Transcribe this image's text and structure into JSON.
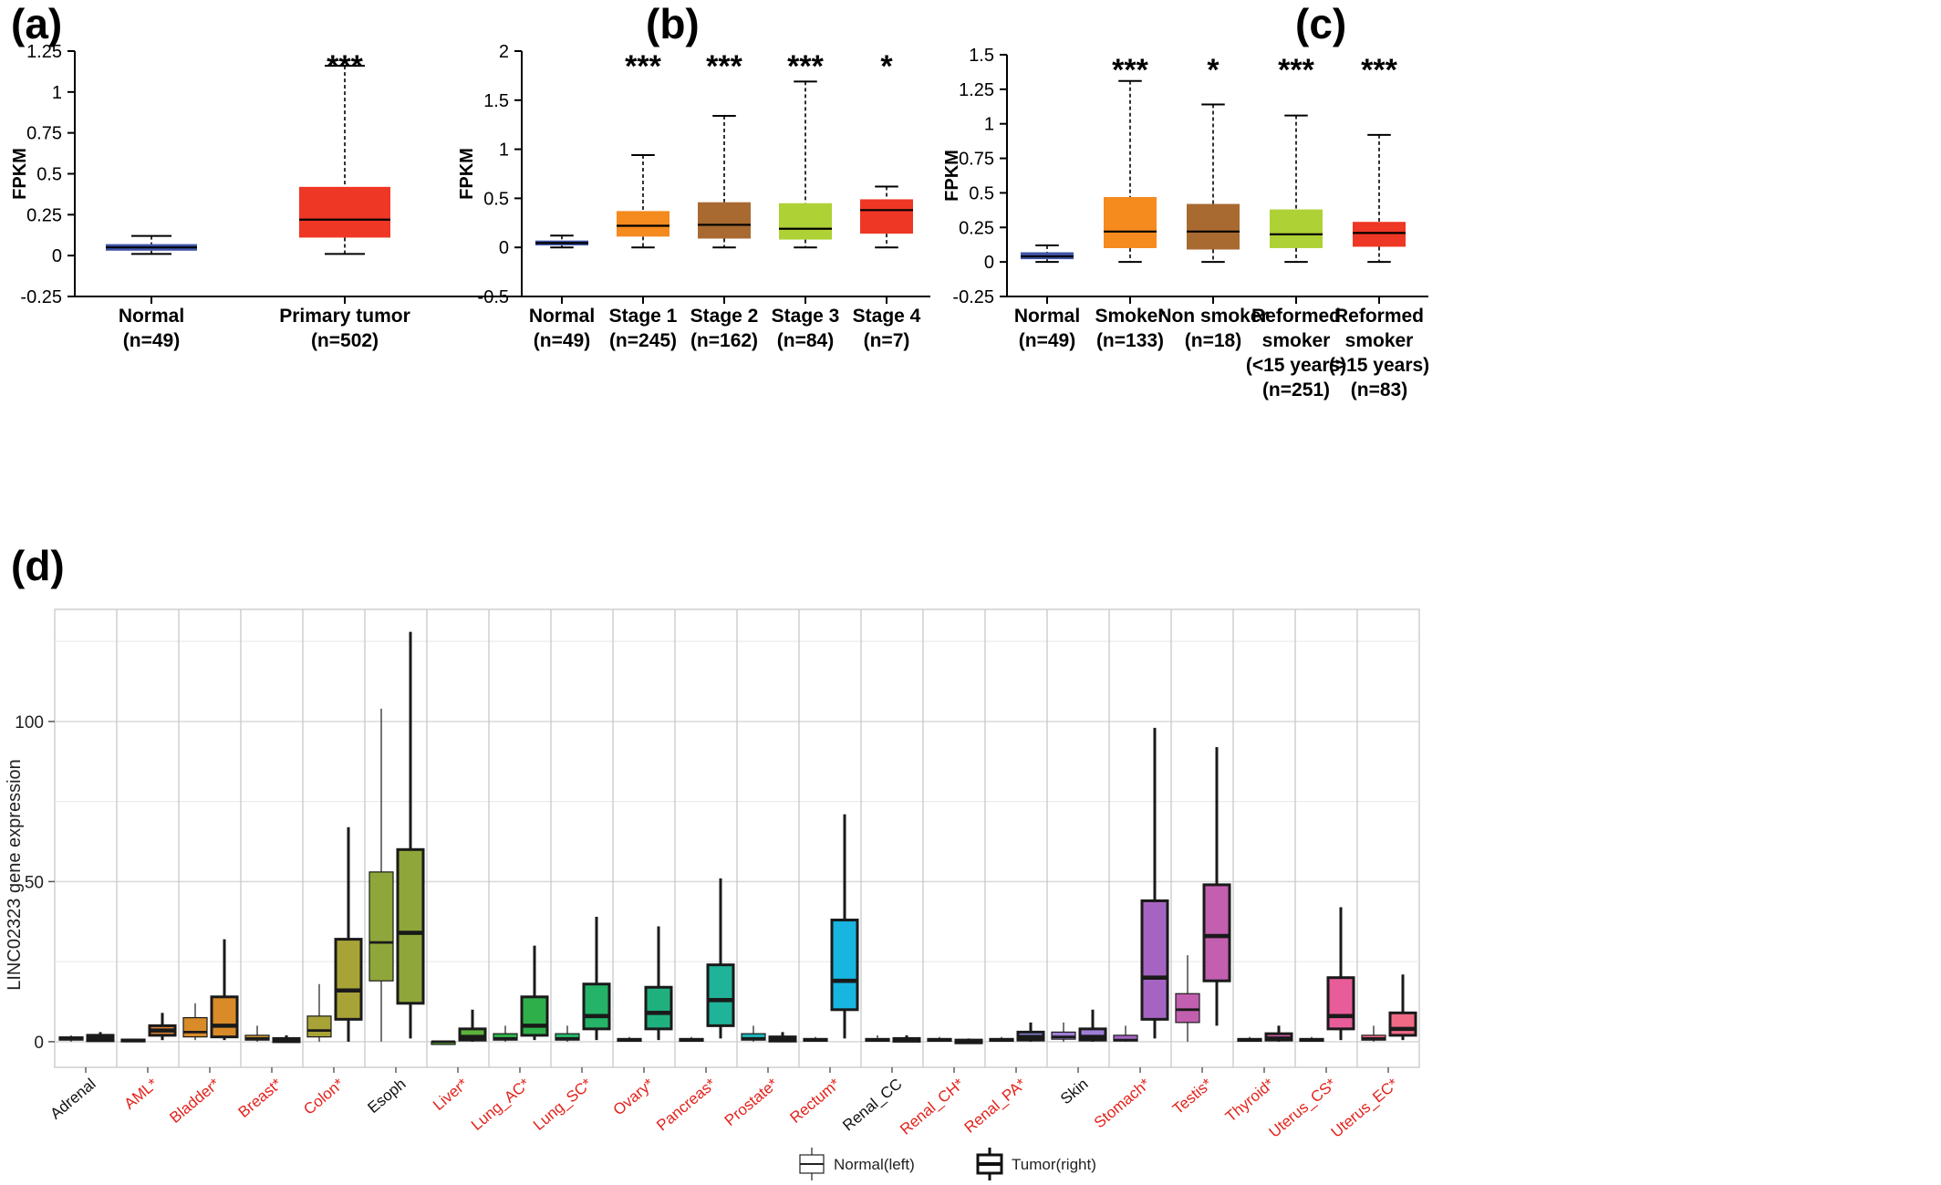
{
  "panel_labels": [
    "(a)",
    "(b)",
    "(c)",
    "(d)"
  ],
  "chart_data": [
    {
      "type": "box",
      "panel": "(a)",
      "ylabel": "FPKM",
      "ylim": [
        -0.25,
        1.25
      ],
      "yticks": [
        -0.25,
        0,
        0.25,
        0.5,
        0.75,
        1,
        1.25
      ],
      "yticklabels": [
        "-0.25",
        "0",
        "0.25",
        "0.5",
        "0.75",
        "1",
        "1.25"
      ],
      "grid": false,
      "categories": [
        [
          "Normal",
          "(n=49)"
        ],
        [
          "Primary tumor",
          "(n=502)"
        ]
      ],
      "boxes": [
        {
          "min": 0.01,
          "q1": 0.03,
          "median": 0.05,
          "q3": 0.07,
          "max": 0.12,
          "color": "#3f54a8"
        },
        {
          "min": 0.01,
          "q1": 0.11,
          "median": 0.22,
          "q3": 0.42,
          "max": 1.16,
          "color": "#ee3724"
        }
      ],
      "significance": [
        "",
        "***"
      ]
    },
    {
      "type": "box",
      "panel": "(b)",
      "ylabel": "FPKM",
      "ylim": [
        -0.5,
        2
      ],
      "yticks": [
        -0.5,
        0,
        0.5,
        1,
        1.5,
        2
      ],
      "yticklabels": [
        "-0.5",
        "0",
        "0.5",
        "1",
        "1.5",
        "2"
      ],
      "grid": false,
      "categories": [
        [
          "Normal",
          "(n=49)"
        ],
        [
          "Stage 1",
          "(n=245)"
        ],
        [
          "Stage 2",
          "(n=162)"
        ],
        [
          "Stage 3",
          "(n=84)"
        ],
        [
          "Stage 4",
          "(n=7)"
        ]
      ],
      "boxes": [
        {
          "min": 0.0,
          "q1": 0.02,
          "median": 0.045,
          "q3": 0.07,
          "max": 0.12,
          "color": "#3f54a8"
        },
        {
          "min": 0.0,
          "q1": 0.11,
          "median": 0.22,
          "q3": 0.37,
          "max": 0.94,
          "color": "#f58a1f"
        },
        {
          "min": 0.0,
          "q1": 0.09,
          "median": 0.23,
          "q3": 0.46,
          "max": 1.34,
          "color": "#a86a31"
        },
        {
          "min": 0.0,
          "q1": 0.08,
          "median": 0.19,
          "q3": 0.45,
          "max": 1.69,
          "color": "#aed136"
        },
        {
          "min": 0.0,
          "q1": 0.14,
          "median": 0.38,
          "q3": 0.49,
          "max": 0.62,
          "color": "#ee3724"
        }
      ],
      "significance": [
        "",
        "***",
        "***",
        "***",
        "*"
      ]
    },
    {
      "type": "box",
      "panel": "(c)",
      "ylabel": "FPKM",
      "ylim": [
        -0.25,
        1.5
      ],
      "yticks": [
        -0.25,
        0,
        0.25,
        0.5,
        0.75,
        1,
        1.25,
        1.5
      ],
      "yticklabels": [
        "-0.25",
        "0",
        "0.25",
        "0.5",
        "0.75",
        "1",
        "1.25",
        "1.5"
      ],
      "grid": false,
      "categories": [
        [
          "Normal",
          "(n=49)"
        ],
        [
          "Smoker",
          "(n=133)"
        ],
        [
          "Non smoker",
          "(n=18)"
        ],
        [
          "Reformed",
          "smoker",
          "(<15 years)",
          "(n=251)"
        ],
        [
          "Reformed",
          "smoker",
          "(>15 years)",
          "(n=83)"
        ]
      ],
      "boxes": [
        {
          "min": 0.0,
          "q1": 0.02,
          "median": 0.04,
          "q3": 0.07,
          "max": 0.12,
          "color": "#3f54a8"
        },
        {
          "min": 0.0,
          "q1": 0.1,
          "median": 0.22,
          "q3": 0.47,
          "max": 1.31,
          "color": "#f58a1f"
        },
        {
          "min": 0.0,
          "q1": 0.09,
          "median": 0.22,
          "q3": 0.42,
          "max": 1.14,
          "color": "#a86a31"
        },
        {
          "min": 0.0,
          "q1": 0.1,
          "median": 0.2,
          "q3": 0.38,
          "max": 1.06,
          "color": "#aed136"
        },
        {
          "min": 0.0,
          "q1": 0.11,
          "median": 0.21,
          "q3": 0.29,
          "max": 0.92,
          "color": "#ee3724"
        }
      ],
      "significance": [
        "",
        "***",
        "*",
        "***",
        "***"
      ]
    },
    {
      "type": "box",
      "panel": "(d)",
      "ylabel": "LINC02323 gene expression",
      "ylim": [
        -8,
        135
      ],
      "yticks": [
        0,
        50,
        100
      ],
      "yticklabels": [
        "0",
        "50",
        "100"
      ],
      "grid": true,
      "legend": {
        "position": "bottom",
        "entries": [
          "Normal(left)",
          "Tumor(right)"
        ]
      },
      "categories": [
        {
          "label": "Adrenal",
          "significant": false,
          "color": "#d9786d",
          "normal": [
            0,
            0.5,
            1,
            1.5,
            2
          ],
          "tumor": [
            0,
            0.3,
            1,
            2,
            3
          ]
        },
        {
          "label": "AML*",
          "significant": true,
          "color": "#e0853a",
          "normal": [
            0,
            0.2,
            0.5,
            0.8,
            1
          ],
          "tumor": [
            0.5,
            2,
            3.5,
            5,
            9
          ]
        },
        {
          "label": "Bladder*",
          "significant": true,
          "color": "#d98b28",
          "normal": [
            0.5,
            1.5,
            3,
            7.5,
            12
          ],
          "tumor": [
            0.5,
            1.5,
            5,
            14,
            32
          ]
        },
        {
          "label": "Breast*",
          "significant": true,
          "color": "#c9962e",
          "normal": [
            0,
            0.5,
            1,
            2,
            5
          ],
          "tumor": [
            0,
            0,
            0.5,
            1,
            2
          ]
        },
        {
          "label": "Colon*",
          "significant": true,
          "color": "#a8a337",
          "normal": [
            0,
            1.5,
            3.5,
            8,
            18
          ],
          "tumor": [
            0,
            7,
            16,
            32,
            67
          ]
        },
        {
          "label": "Esoph",
          "significant": false,
          "color": "#8fa63a",
          "normal": [
            0,
            19,
            31,
            53,
            104
          ],
          "tumor": [
            1,
            12,
            34,
            60,
            128
          ]
        },
        {
          "label": "Liver*",
          "significant": true,
          "color": "#5db23c",
          "normal": [
            0,
            0,
            0,
            0,
            0
          ],
          "tumor": [
            0,
            0.5,
            1.5,
            4,
            10
          ]
        },
        {
          "label": "Lung_AC*",
          "significant": true,
          "color": "#2faf4a",
          "normal": [
            0,
            0.5,
            1,
            2.5,
            5
          ],
          "tumor": [
            0.5,
            2,
            5,
            14,
            30
          ]
        },
        {
          "label": "Lung_SC*",
          "significant": true,
          "color": "#24b368",
          "normal": [
            0,
            0.5,
            1,
            2.5,
            5
          ],
          "tumor": [
            0.5,
            4,
            8,
            18,
            39
          ]
        },
        {
          "label": "Ovary*",
          "significant": true,
          "color": "#20b07e",
          "normal": [
            0,
            0.2,
            0.5,
            1,
            1.5
          ],
          "tumor": [
            0.5,
            4,
            9,
            17,
            36
          ]
        },
        {
          "label": "Pancreas*",
          "significant": true,
          "color": "#1fb39a",
          "normal": [
            0,
            0.2,
            0.5,
            1,
            1.5
          ],
          "tumor": [
            1,
            5,
            13,
            24,
            51
          ]
        },
        {
          "label": "Prostate*",
          "significant": true,
          "color": "#1eb0b6",
          "normal": [
            0,
            0.5,
            1,
            2.5,
            5
          ],
          "tumor": [
            0,
            0.2,
            0.5,
            1.5,
            3
          ]
        },
        {
          "label": "Rectum*",
          "significant": true,
          "color": "#17b5e0",
          "normal": [
            0,
            0.3,
            0.5,
            1,
            1.5
          ],
          "tumor": [
            1,
            10,
            19,
            38,
            71
          ]
        },
        {
          "label": "Renal_CC",
          "significant": false,
          "color": "#3ba3d8",
          "normal": [
            0,
            0.2,
            0.5,
            1,
            2
          ],
          "tumor": [
            0,
            0.2,
            0.5,
            1,
            2
          ]
        },
        {
          "label": "Renal_CH*",
          "significant": true,
          "color": "#5b8fdb",
          "normal": [
            0,
            0.2,
            0.5,
            1,
            1.5
          ],
          "tumor": [
            0,
            0,
            0.2,
            0.5,
            1
          ]
        },
        {
          "label": "Renal_PA*",
          "significant": true,
          "color": "#8b85dc",
          "normal": [
            0,
            0.2,
            0.5,
            1,
            1.5
          ],
          "tumor": [
            0,
            0.5,
            1.5,
            3,
            6
          ]
        },
        {
          "label": "Skin",
          "significant": false,
          "color": "#a07ed6",
          "normal": [
            0,
            0.8,
            1.5,
            3,
            6
          ],
          "tumor": [
            0,
            0.5,
            1.5,
            4,
            10
          ]
        },
        {
          "label": "Stomach*",
          "significant": true,
          "color": "#a664c2",
          "normal": [
            0,
            0.2,
            0.5,
            2,
            5
          ],
          "tumor": [
            1,
            7,
            20,
            44,
            98
          ]
        },
        {
          "label": "Testis*",
          "significant": true,
          "color": "#c25faf",
          "normal": [
            0,
            6,
            10,
            15,
            27
          ],
          "tumor": [
            5,
            19,
            33,
            49,
            92
          ]
        },
        {
          "label": "Thyroid*",
          "significant": true,
          "color": "#d65aa6",
          "normal": [
            0,
            0.2,
            0.5,
            1,
            1.5
          ],
          "tumor": [
            0,
            0.5,
            1,
            2.5,
            5
          ]
        },
        {
          "label": "Uterus_CS*",
          "significant": true,
          "color": "#e95c9a",
          "normal": [
            0,
            0.2,
            0.5,
            1,
            1.5
          ],
          "tumor": [
            0.5,
            4,
            8,
            20,
            42
          ]
        },
        {
          "label": "Uterus_EC*",
          "significant": true,
          "color": "#f06a86",
          "normal": [
            0,
            0.5,
            1,
            2,
            5
          ],
          "tumor": [
            0.5,
            2,
            4,
            9,
            21
          ]
        }
      ]
    }
  ]
}
